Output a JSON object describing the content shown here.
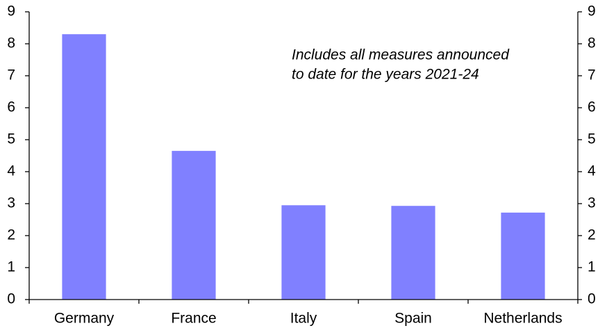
{
  "chart_data": {
    "type": "bar",
    "annotations": [
      "Includes all measures announced",
      "to date for the years 2021-24"
    ],
    "categories": [
      "Germany",
      "France",
      "Italy",
      "Spain",
      "Netherlands"
    ],
    "values": [
      8.3,
      4.65,
      2.95,
      2.93,
      2.72
    ],
    "color": "#8080ff",
    "ylim": [
      0,
      9
    ],
    "yticks": [
      0,
      1,
      2,
      3,
      4,
      5,
      6,
      7,
      8,
      9
    ],
    "y2lim": [
      0,
      9
    ],
    "y2ticks": [
      0,
      1,
      2,
      3,
      4,
      5,
      6,
      7,
      8,
      9
    ],
    "grid": false
  }
}
